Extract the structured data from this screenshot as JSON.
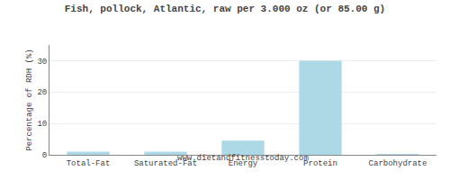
{
  "chart_data": {
    "type": "bar",
    "title": "Fish, pollock, Atlantic, raw per 3.000 oz (or 85.00 g)",
    "subtitle": "www.dietandfitnesstoday.com",
    "ylabel": "Percentage of RDH (%)",
    "categories": [
      "Total-Fat",
      "Saturated-Fat",
      "Energy",
      "Protein",
      "Carbohydrate"
    ],
    "values": [
      1.0,
      1.0,
      4.5,
      30.0,
      0.1
    ],
    "color": "#ADD8E6",
    "ylim": [
      0,
      35
    ],
    "yticks": [
      0,
      10,
      20,
      30
    ],
    "grid": true
  }
}
